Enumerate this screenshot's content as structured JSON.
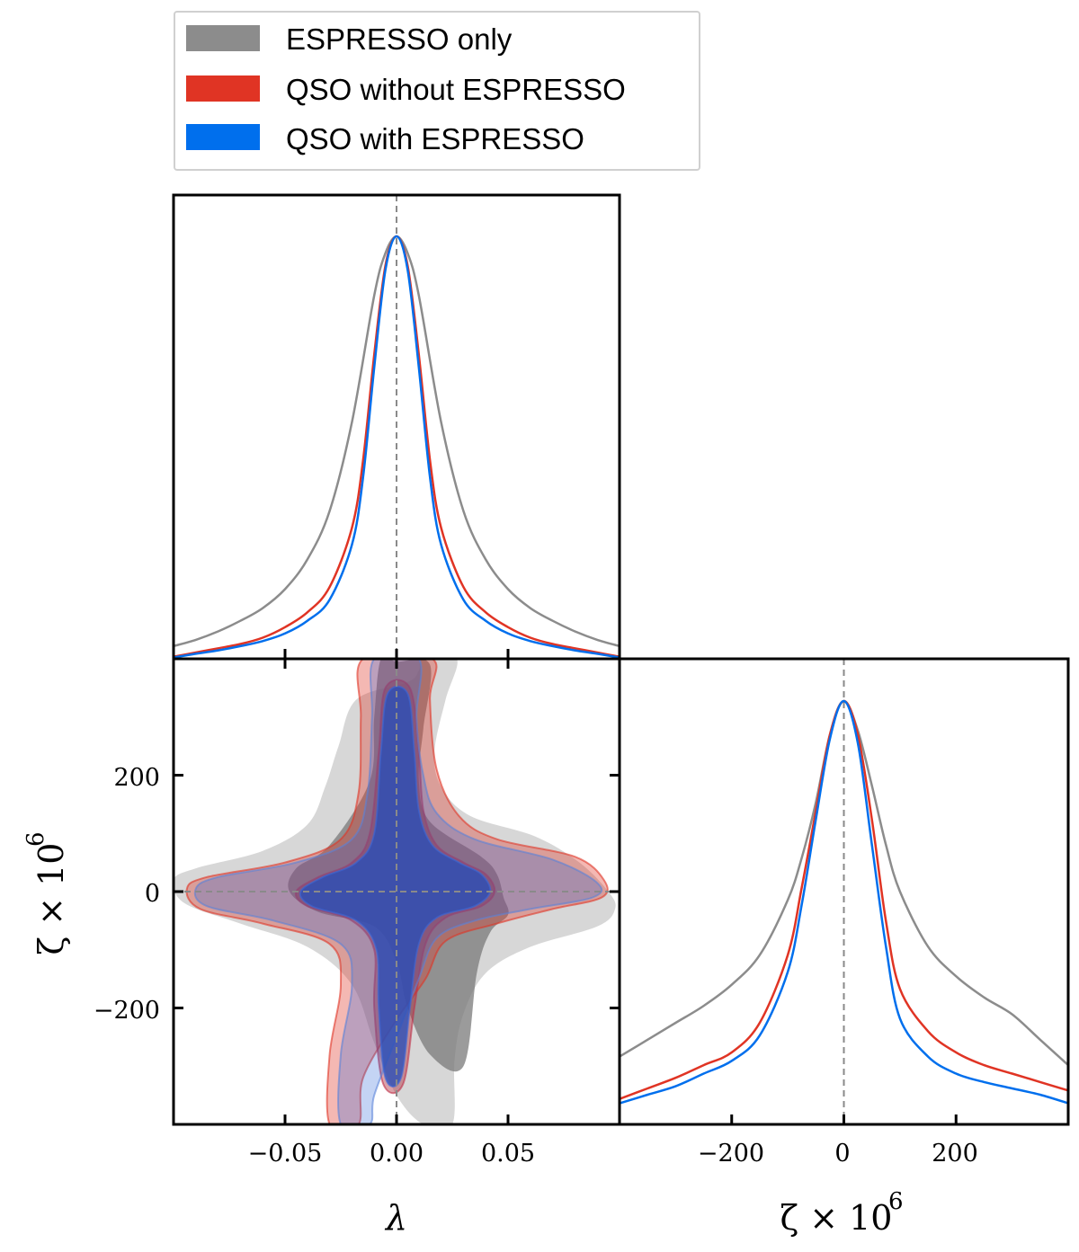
{
  "chart_data": {
    "type": "corner",
    "parameters": [
      {
        "symbol": "λ",
        "label": "λ",
        "range": [
          -0.1,
          0.1
        ],
        "ticks": [
          -0.05,
          0.0,
          0.05
        ],
        "tick_labels": [
          "−0.05",
          "0.00",
          "0.05"
        ],
        "fiducial": 0.0
      },
      {
        "symbol": "ζ",
        "label": "ζ × 10",
        "exponent": "6",
        "range": [
          -400,
          400
        ],
        "ticks": [
          -200,
          0,
          200
        ],
        "tick_labels": [
          "−200",
          "0",
          "200"
        ],
        "fiducial": 0
      }
    ],
    "legend": [
      {
        "key": "espresso",
        "label": "ESPRESSO only",
        "color": "#8c8c8c"
      },
      {
        "key": "qso_no",
        "label": "QSO without ESPRESSO",
        "color": "#e03424"
      },
      {
        "key": "qso_with",
        "label": "QSO with ESPRESSO",
        "color": "#006fed"
      }
    ],
    "marginals": {
      "lambda": {
        "espresso": {
          "x": [
            -0.1,
            -0.09,
            -0.08,
            -0.07,
            -0.06,
            -0.05,
            -0.04,
            -0.03,
            -0.02,
            -0.01,
            -0.005,
            0,
            0.005,
            0.01,
            0.02,
            0.03,
            0.04,
            0.05,
            0.06,
            0.07,
            0.08,
            0.09,
            0.1
          ],
          "y": [
            0.03,
            0.045,
            0.065,
            0.09,
            0.12,
            0.165,
            0.235,
            0.35,
            0.56,
            0.86,
            0.96,
            1.0,
            0.96,
            0.86,
            0.56,
            0.35,
            0.235,
            0.165,
            0.12,
            0.09,
            0.065,
            0.045,
            0.03
          ]
        },
        "qso_no": {
          "x": [
            -0.1,
            -0.09,
            -0.08,
            -0.07,
            -0.06,
            -0.05,
            -0.04,
            -0.03,
            -0.02,
            -0.015,
            -0.01,
            -0.005,
            0,
            0.005,
            0.01,
            0.015,
            0.02,
            0.03,
            0.04,
            0.05,
            0.06,
            0.07,
            0.08,
            0.09,
            0.1
          ],
          "y": [
            0.005,
            0.015,
            0.025,
            0.035,
            0.05,
            0.075,
            0.11,
            0.17,
            0.31,
            0.47,
            0.72,
            0.93,
            1.0,
            0.93,
            0.72,
            0.47,
            0.31,
            0.17,
            0.11,
            0.075,
            0.05,
            0.035,
            0.025,
            0.015,
            0.005
          ]
        },
        "qso_with": {
          "x": [
            -0.1,
            -0.09,
            -0.08,
            -0.07,
            -0.06,
            -0.05,
            -0.04,
            -0.03,
            -0.02,
            -0.015,
            -0.01,
            -0.005,
            0,
            0.005,
            0.01,
            0.015,
            0.02,
            0.03,
            0.04,
            0.05,
            0.06,
            0.07,
            0.08,
            0.09,
            0.1
          ],
          "y": [
            0.003,
            0.012,
            0.02,
            0.03,
            0.042,
            0.06,
            0.09,
            0.14,
            0.27,
            0.43,
            0.69,
            0.92,
            1.0,
            0.92,
            0.69,
            0.43,
            0.27,
            0.14,
            0.09,
            0.06,
            0.042,
            0.03,
            0.02,
            0.012,
            0.003
          ]
        }
      },
      "zeta": {
        "espresso": {
          "x": [
            -400,
            -350,
            -300,
            -250,
            -200,
            -150,
            -100,
            -75,
            -50,
            -25,
            0,
            25,
            50,
            75,
            100,
            150,
            200,
            250,
            300,
            350,
            400
          ],
          "y": [
            0.16,
            0.2,
            0.24,
            0.28,
            0.33,
            0.4,
            0.53,
            0.63,
            0.76,
            0.92,
            1.0,
            0.93,
            0.8,
            0.66,
            0.55,
            0.42,
            0.35,
            0.3,
            0.26,
            0.2,
            0.14
          ]
        },
        "qso_no": {
          "x": [
            -400,
            -350,
            -300,
            -250,
            -200,
            -150,
            -100,
            -75,
            -50,
            -25,
            0,
            25,
            50,
            75,
            100,
            150,
            200,
            250,
            300,
            350,
            400
          ],
          "y": [
            0.06,
            0.085,
            0.11,
            0.14,
            0.17,
            0.24,
            0.4,
            0.56,
            0.74,
            0.92,
            1.0,
            0.92,
            0.72,
            0.48,
            0.32,
            0.22,
            0.17,
            0.14,
            0.12,
            0.1,
            0.08
          ]
        },
        "qso_with": {
          "x": [
            -400,
            -350,
            -300,
            -250,
            -200,
            -150,
            -100,
            -75,
            -50,
            -25,
            0,
            25,
            50,
            75,
            100,
            150,
            200,
            250,
            300,
            350,
            400
          ],
          "y": [
            0.05,
            0.07,
            0.09,
            0.12,
            0.15,
            0.21,
            0.36,
            0.52,
            0.72,
            0.91,
            1.0,
            0.9,
            0.66,
            0.42,
            0.25,
            0.16,
            0.12,
            0.1,
            0.085,
            0.07,
            0.05
          ]
        }
      }
    },
    "contours_2d": {
      "espresso_95": [
        [
          0.005,
          360
        ],
        [
          0.01,
          380
        ],
        [
          0.012,
          400
        ],
        [
          0.027,
          400
        ],
        [
          0.022,
          330
        ],
        [
          0.017,
          240
        ],
        [
          0.02,
          180
        ],
        [
          0.033,
          130
        ],
        [
          0.062,
          95
        ],
        [
          0.082,
          50
        ],
        [
          0.095,
          0
        ],
        [
          0.098,
          -30
        ],
        [
          0.09,
          -60
        ],
        [
          0.06,
          -95
        ],
        [
          0.04,
          -140
        ],
        [
          0.03,
          -210
        ],
        [
          0.026,
          -290
        ],
        [
          0.025,
          -400
        ],
        [
          0.012,
          -400
        ],
        [
          0.0,
          -350
        ],
        [
          -0.01,
          -260
        ],
        [
          -0.02,
          -160
        ],
        [
          -0.04,
          -95
        ],
        [
          -0.07,
          -55
        ],
        [
          -0.095,
          -20
        ],
        [
          -0.1,
          20
        ],
        [
          -0.09,
          40
        ],
        [
          -0.06,
          70
        ],
        [
          -0.04,
          115
        ],
        [
          -0.032,
          180
        ],
        [
          -0.026,
          250
        ],
        [
          -0.018,
          330
        ]
      ],
      "espresso_68": [
        [
          -0.007,
          400
        ],
        [
          0.0,
          395
        ],
        [
          0.015,
          390
        ],
        [
          0.012,
          280
        ],
        [
          0.01,
          190
        ],
        [
          0.015,
          120
        ],
        [
          0.038,
          60
        ],
        [
          0.045,
          30
        ],
        [
          0.048,
          -10
        ],
        [
          0.05,
          -40
        ],
        [
          0.042,
          -70
        ],
        [
          0.036,
          -140
        ],
        [
          0.03,
          -300
        ],
        [
          0.015,
          -280
        ],
        [
          0.005,
          -200
        ],
        [
          0.0,
          -120
        ],
        [
          -0.01,
          -60
        ],
        [
          -0.035,
          -35
        ],
        [
          -0.048,
          0
        ],
        [
          -0.045,
          40
        ],
        [
          -0.03,
          80
        ],
        [
          -0.012,
          190
        ],
        [
          -0.01,
          300
        ]
      ],
      "qso_no_95": [
        [
          -0.015,
          400
        ],
        [
          0.016,
          400
        ],
        [
          0.015,
          330
        ],
        [
          0.018,
          210
        ],
        [
          0.028,
          130
        ],
        [
          0.045,
          90
        ],
        [
          0.08,
          60
        ],
        [
          0.093,
          20
        ],
        [
          0.092,
          -10
        ],
        [
          0.07,
          -30
        ],
        [
          0.045,
          -55
        ],
        [
          0.022,
          -85
        ],
        [
          0.013,
          -150
        ],
        [
          0.0,
          -220
        ],
        [
          -0.015,
          -320
        ],
        [
          -0.017,
          -400
        ],
        [
          -0.03,
          -400
        ],
        [
          -0.03,
          -280
        ],
        [
          -0.025,
          -160
        ],
        [
          -0.03,
          -90
        ],
        [
          -0.06,
          -55
        ],
        [
          -0.088,
          -30
        ],
        [
          -0.094,
          5
        ],
        [
          -0.085,
          25
        ],
        [
          -0.05,
          50
        ],
        [
          -0.025,
          90
        ],
        [
          -0.017,
          170
        ],
        [
          -0.016,
          300
        ]
      ],
      "qso_no_68": [
        [
          -0.005,
          350
        ],
        [
          0.006,
          350
        ],
        [
          0.01,
          240
        ],
        [
          0.012,
          140
        ],
        [
          0.018,
          80
        ],
        [
          0.03,
          50
        ],
        [
          0.04,
          30
        ],
        [
          0.044,
          0
        ],
        [
          0.038,
          -25
        ],
        [
          0.022,
          -45
        ],
        [
          0.013,
          -90
        ],
        [
          0.008,
          -200
        ],
        [
          0.003,
          -330
        ],
        [
          -0.006,
          -330
        ],
        [
          -0.01,
          -200
        ],
        [
          -0.01,
          -100
        ],
        [
          -0.02,
          -50
        ],
        [
          -0.04,
          -25
        ],
        [
          -0.045,
          0
        ],
        [
          -0.035,
          25
        ],
        [
          -0.02,
          50
        ],
        [
          -0.012,
          100
        ],
        [
          -0.008,
          240
        ]
      ],
      "qso_with_95": [
        [
          -0.01,
          400
        ],
        [
          0.01,
          400
        ],
        [
          0.009,
          300
        ],
        [
          0.012,
          200
        ],
        [
          0.018,
          135
        ],
        [
          0.035,
          90
        ],
        [
          0.07,
          55
        ],
        [
          0.09,
          15
        ],
        [
          0.088,
          -10
        ],
        [
          0.06,
          -30
        ],
        [
          0.035,
          -50
        ],
        [
          0.018,
          -80
        ],
        [
          0.01,
          -150
        ],
        [
          0.0,
          -250
        ],
        [
          -0.01,
          -350
        ],
        [
          -0.012,
          -400
        ],
        [
          -0.025,
          -400
        ],
        [
          -0.025,
          -280
        ],
        [
          -0.02,
          -160
        ],
        [
          -0.025,
          -90
        ],
        [
          -0.055,
          -50
        ],
        [
          -0.085,
          -25
        ],
        [
          -0.09,
          5
        ],
        [
          -0.08,
          25
        ],
        [
          -0.045,
          50
        ],
        [
          -0.02,
          90
        ],
        [
          -0.013,
          170
        ],
        [
          -0.011,
          300
        ]
      ],
      "qso_with_68": [
        [
          -0.004,
          340
        ],
        [
          0.005,
          340
        ],
        [
          0.008,
          240
        ],
        [
          0.01,
          140
        ],
        [
          0.016,
          80
        ],
        [
          0.028,
          50
        ],
        [
          0.038,
          30
        ],
        [
          0.042,
          0
        ],
        [
          0.035,
          -25
        ],
        [
          0.018,
          -45
        ],
        [
          0.01,
          -90
        ],
        [
          0.006,
          -200
        ],
        [
          0.002,
          -320
        ],
        [
          -0.005,
          -320
        ],
        [
          -0.008,
          -200
        ],
        [
          -0.009,
          -100
        ],
        [
          -0.018,
          -50
        ],
        [
          -0.038,
          -25
        ],
        [
          -0.043,
          0
        ],
        [
          -0.033,
          25
        ],
        [
          -0.018,
          50
        ],
        [
          -0.01,
          100
        ],
        [
          -0.007,
          240
        ]
      ]
    }
  }
}
